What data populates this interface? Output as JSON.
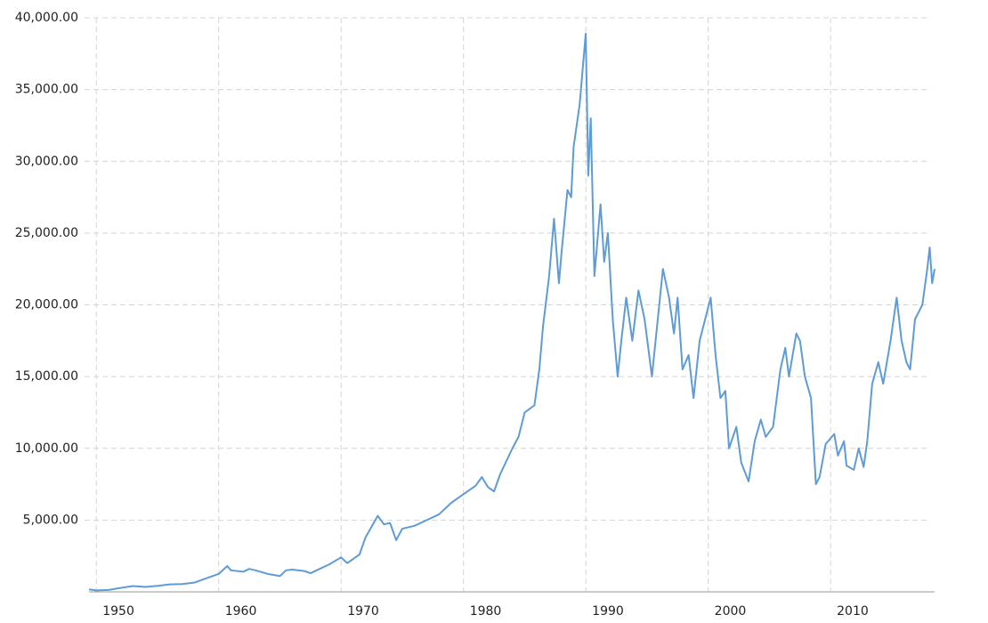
{
  "chart_data": {
    "type": "line",
    "x": [
      1949.4,
      1950,
      1951,
      1952,
      1953,
      1954,
      1955,
      1956,
      1957,
      1958,
      1959,
      1960,
      1960.7,
      1961,
      1962,
      1962.5,
      1963,
      1964,
      1965,
      1965.5,
      1966,
      1967,
      1967.5,
      1968,
      1969,
      1970,
      1970.5,
      1971,
      1971.5,
      1972,
      1973,
      1973.5,
      1974,
      1974.5,
      1975,
      1976,
      1977,
      1978,
      1979,
      1980,
      1981,
      1981.5,
      1982,
      1982.5,
      1983,
      1984,
      1984.5,
      1985,
      1985.8,
      1986.2,
      1986.5,
      1987,
      1987.4,
      1987.8,
      1988,
      1988.5,
      1988.8,
      1989,
      1989.5,
      1989.99,
      1990.2,
      1990.4,
      1990.7,
      1991,
      1991.2,
      1991.5,
      1991.8,
      1992.2,
      1992.6,
      1992.9,
      1993.3,
      1993.8,
      1994.3,
      1994.8,
      1995.4,
      1995.7,
      1996.3,
      1996.8,
      1997.2,
      1997.5,
      1997.9,
      1998.4,
      1998.8,
      1999.3,
      2000.2,
      2000.6,
      2001,
      2001.4,
      2001.7,
      2002.3,
      2002.7,
      2003.3,
      2003.8,
      2004.3,
      2004.7,
      2005.3,
      2005.9,
      2006.3,
      2006.6,
      2007.2,
      2007.5,
      2007.9,
      2008.4,
      2008.8,
      2009.1,
      2009.6,
      2010.3,
      2010.6,
      2011.1,
      2011.3,
      2011.9,
      2012.3,
      2012.7,
      2013,
      2013.4,
      2013.9,
      2014.3,
      2014.9,
      2015.4,
      2015.8,
      2016.2,
      2016.5,
      2016.9,
      2017.5,
      2017.9,
      2018.1,
      2018.3,
      2018.5
    ],
    "series": [
      {
        "color": "#5f9bd6",
        "values": [
          170,
          100,
          130,
          280,
          400,
          340,
          420,
          520,
          540,
          640,
          950,
          1250,
          1800,
          1500,
          1400,
          1600,
          1500,
          1250,
          1100,
          1500,
          1550,
          1450,
          1300,
          1500,
          1900,
          2400,
          2000,
          2300,
          2600,
          3800,
          5300,
          4700,
          4800,
          3600,
          4400,
          4600,
          5000,
          5400,
          6200,
          6800,
          7400,
          8000,
          7300,
          7000,
          8200,
          10000,
          10800,
          12500,
          13000,
          15500,
          18500,
          22000,
          26000,
          21500,
          23500,
          28000,
          27500,
          31000,
          34000,
          38900,
          29000,
          33000,
          22000,
          25000,
          27000,
          23000,
          25000,
          19000,
          15000,
          17500,
          20500,
          17500,
          21000,
          19000,
          15000,
          17500,
          22500,
          20500,
          18000,
          20500,
          15500,
          16500,
          13500,
          17500,
          20500,
          16500,
          13500,
          14000,
          10000,
          11500,
          9000,
          7700,
          10500,
          12000,
          10800,
          11500,
          15500,
          17000,
          15000,
          18000,
          17500,
          15000,
          13500,
          7500,
          8000,
          10300,
          11000,
          9500,
          10500,
          8800,
          8500,
          10000,
          8700,
          10500,
          14500,
          16000,
          14500,
          17500,
          20500,
          17500,
          16000,
          15500,
          19000,
          20000,
          22500,
          24000,
          21500,
          22500
        ]
      }
    ],
    "xlim": [
      1949.4,
      2018.5
    ],
    "xticks": [
      1950,
      1960,
      1970,
      1980,
      1990,
      2000,
      2010
    ],
    "ylim": [
      0,
      40000
    ],
    "yticks": [
      {
        "value": 5000,
        "label": "5,000.00"
      },
      {
        "value": 10000,
        "label": "10,000.00"
      },
      {
        "value": 15000,
        "label": "15,000.00"
      },
      {
        "value": 20000,
        "label": "20,000.00"
      },
      {
        "value": 25000,
        "label": "25,000.00"
      },
      {
        "value": 30000,
        "label": "30,000.00"
      },
      {
        "value": 35000,
        "label": "35,000.00"
      },
      {
        "value": 40000,
        "label": "40,000.00"
      }
    ],
    "grid": true
  }
}
